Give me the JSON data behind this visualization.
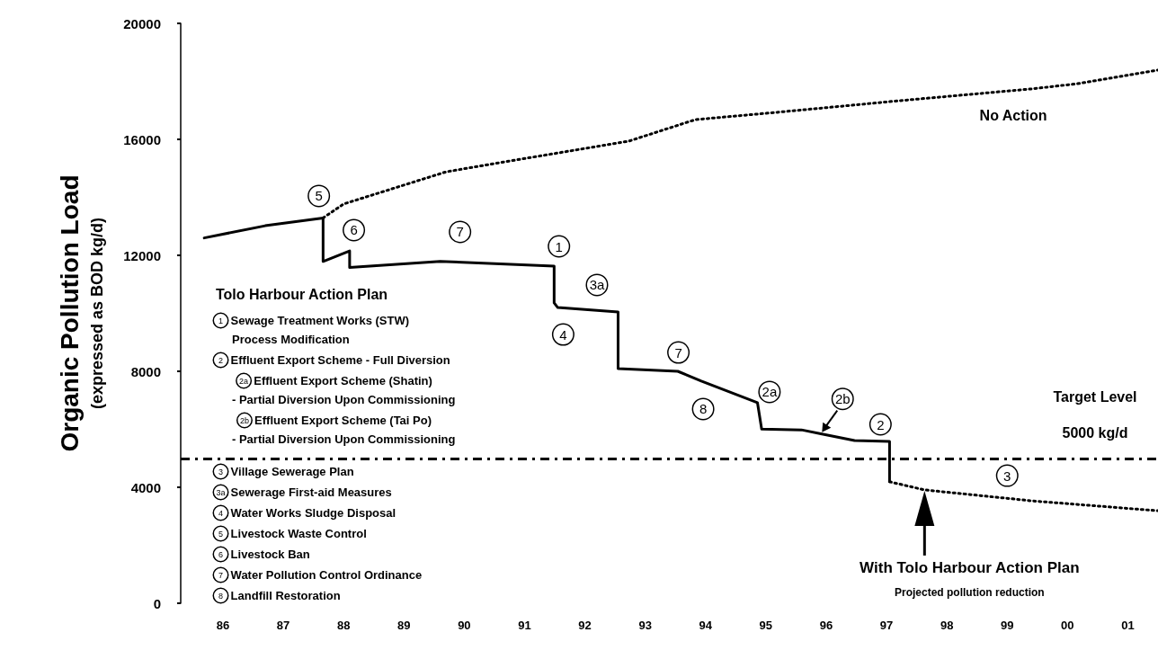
{
  "chart_data": {
    "type": "line",
    "ylabel": "Organic Pollution Load\n(expressed as BOD kg/d)",
    "xlim": [
      1985.3,
      2001.5
    ],
    "xticks": [
      {
        "value": 1986,
        "label": "86"
      },
      {
        "value": 1987,
        "label": "87"
      },
      {
        "value": 1988,
        "label": "88"
      },
      {
        "value": 1989,
        "label": "89"
      },
      {
        "value": 1990,
        "label": "90"
      },
      {
        "value": 1991,
        "label": "91"
      },
      {
        "value": 1992,
        "label": "92"
      },
      {
        "value": 1993,
        "label": "93"
      },
      {
        "value": 1994,
        "label": "94"
      },
      {
        "value": 1995,
        "label": "95"
      },
      {
        "value": 1996,
        "label": "96"
      },
      {
        "value": 1997,
        "label": "97"
      },
      {
        "value": 1998,
        "label": "98"
      },
      {
        "value": 1999,
        "label": "99"
      },
      {
        "value": 2000,
        "label": "00"
      },
      {
        "value": 2001,
        "label": "01"
      }
    ],
    "ylim": [
      0,
      20000
    ],
    "yticks": [
      0,
      4000,
      8000,
      12000,
      16000,
      20000
    ],
    "marker": "none",
    "series": [
      {
        "color": "#000000",
        "line_style": "solid",
        "x": [
          1985.69,
          1986.7,
          1987.66,
          1987.66,
          1988.1,
          1988.1,
          1989.6,
          1991.49,
          1991.49,
          1991.55,
          1992.55,
          1992.55,
          1993.54,
          1993.93,
          1994.86,
          1994.93,
          1995.59,
          1995.93,
          1996.47,
          1997.05,
          1997.05
        ],
        "values": [
          12600,
          13020,
          13290,
          11790,
          12150,
          11580,
          11790,
          11630,
          10360,
          10200,
          10050,
          8090,
          8000,
          7660,
          6920,
          6010,
          5980,
          5840,
          5610,
          5580,
          4190
        ]
      },
      {
        "color": "#000000",
        "line_style": "dotted",
        "x": [
          1997.05,
          1997.63,
          1999.42,
          2001.5
        ],
        "values": [
          4190,
          3910,
          3530,
          3190
        ]
      },
      {
        "name": "No Action",
        "color": "#000000",
        "line_style": "dotted",
        "x": [
          1987.66,
          1988.0,
          1989.7,
          1990.6,
          1992.73,
          1993.83,
          1995.17,
          1997.2,
          1999.4,
          2000.17,
          2001.5
        ],
        "values": [
          13290,
          13770,
          14880,
          15200,
          15940,
          16680,
          16930,
          17330,
          17740,
          17920,
          18390
        ]
      }
    ],
    "ref_lines": [
      {
        "axis": "y",
        "value": 5000,
        "label": "Target Level\n5000 kg/d",
        "color": "#000000",
        "line_style": "dashed"
      }
    ],
    "annotations": [
      "Tolo Harbour Action Plan",
      "1 Sewage Treatment Works (STW)\nProcess Modification",
      "2 Effluent Export Scheme - Full Diversion",
      "2a Effluent Export Scheme (Shatin)\n- Partial Diversion Upon Commissioning",
      "2b Effluent Export Scheme (Tai Po)\n- Partial Diversion Upon Commissioning",
      "3 Village Sewerage Plan",
      "3a Sewerage First-aid Measures",
      "4 Water Works Sludge Disposal",
      "5 Livestock Waste Control",
      "6 Livestock Ban",
      "7 Water Pollution Control Ordinance",
      "8 Landfill Restoration",
      {
        "text": "5",
        "x": 1987.59,
        "y": 14050
      },
      {
        "text": "6",
        "x": 1988.17,
        "y": 12870
      },
      {
        "text": "7",
        "x": 1989.93,
        "y": 12810
      },
      {
        "text": "1",
        "x": 1991.57,
        "y": 12310
      },
      {
        "text": "3a",
        "x": 1992.2,
        "y": 10980
      },
      {
        "text": "4",
        "x": 1991.64,
        "y": 9270
      },
      {
        "text": "7",
        "x": 1993.55,
        "y": 8650
      },
      {
        "text": "8",
        "x": 1993.96,
        "y": 6700
      },
      {
        "text": "2a",
        "x": 1995.06,
        "y": 7290
      },
      {
        "text": "2b",
        "x": 1995.93,
        "y": 5840
      },
      {
        "text": "2",
        "x": 1996.9,
        "y": 6170
      },
      {
        "text": "3",
        "x": 1999.0,
        "y": 4400
      },
      "With Tolo Harbour Action Plan\nProjected pollution reduction"
    ]
  }
}
